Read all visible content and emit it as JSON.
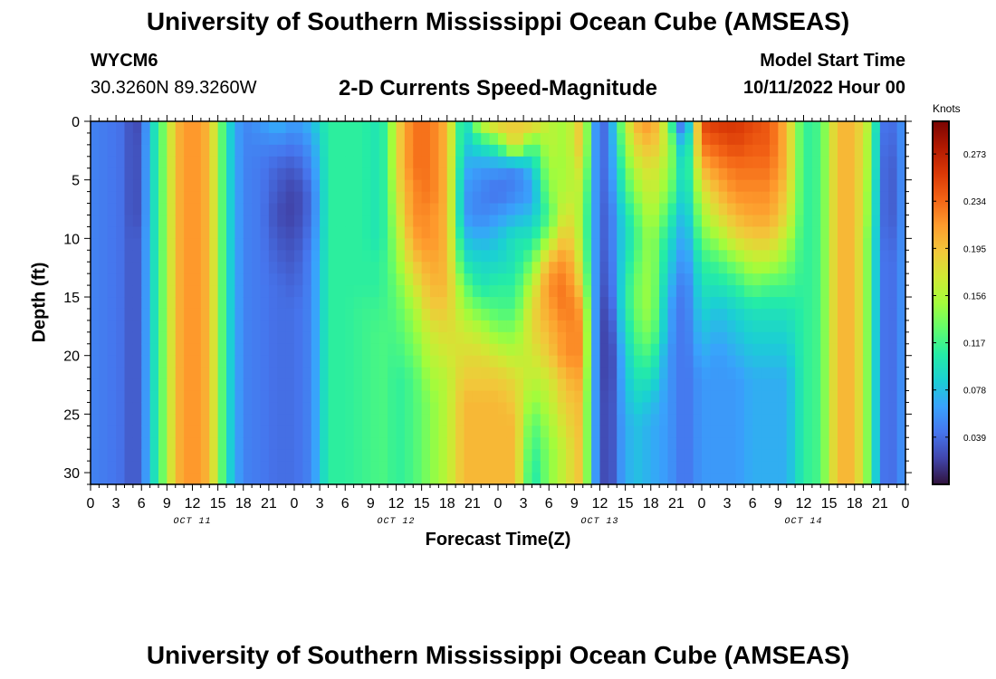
{
  "header": {
    "title": "University of Southern Mississippi Ocean Cube (AMSEAS)",
    "station_id": "WYCM6",
    "coordinates": "30.3260N  89.3260W",
    "parameter": "2-D Currents Speed-Magnitude",
    "model_start_label": "Model Start Time",
    "model_start_value": "10/11/2022 Hour 00"
  },
  "footer": {
    "title": "University of Southern Mississippi Ocean Cube (AMSEAS)"
  },
  "chart_data": {
    "type": "heatmap",
    "title": "2-D Currents Speed-Magnitude",
    "xlabel": "Forecast Time(Z)",
    "ylabel": "Depth (ft)",
    "x_unit": "hours since 10/11/2022 00Z",
    "xlim": [
      0,
      96
    ],
    "ylim": [
      0,
      31
    ],
    "y_inverted": true,
    "x_tick_values": [
      0,
      3,
      6,
      9,
      12,
      15,
      18,
      21,
      24,
      27,
      30,
      33,
      36,
      39,
      42,
      45,
      48,
      51,
      54,
      57,
      60,
      63,
      66,
      69,
      72,
      75,
      78,
      81,
      84,
      87,
      90,
      93,
      96
    ],
    "x_tick_labels": [
      "0",
      "3",
      "6",
      "9",
      "12",
      "15",
      "18",
      "21",
      "0",
      "3",
      "6",
      "9",
      "12",
      "15",
      "18",
      "21",
      "0",
      "3",
      "6",
      "9",
      "12",
      "15",
      "18",
      "21",
      "0",
      "3",
      "6",
      "9",
      "12",
      "15",
      "18",
      "21",
      "0"
    ],
    "y_tick_values": [
      0,
      5,
      10,
      15,
      20,
      25,
      30
    ],
    "y_tick_labels": [
      "0",
      "5",
      "10",
      "15",
      "20",
      "25",
      "30"
    ],
    "date_labels": [
      {
        "hour": 12,
        "label": "OCT 11"
      },
      {
        "hour": 36,
        "label": "OCT 12"
      },
      {
        "hour": 60,
        "label": "OCT 13"
      },
      {
        "hour": 84,
        "label": "OCT 14"
      }
    ],
    "colorbar": {
      "unit": "Knots",
      "min": 0.0,
      "max": 0.3,
      "tick_values": [
        0.039,
        0.078,
        0.117,
        0.156,
        0.195,
        0.234,
        0.273
      ],
      "tick_labels": [
        "0.039",
        "0.078",
        "0.117",
        "0.156",
        "0.195",
        "0.234",
        "0.273"
      ],
      "stops": [
        "#30123b",
        "#4145ab",
        "#4675ed",
        "#39a2fc",
        "#1bcfd4",
        "#24eca6",
        "#61fc6c",
        "#a4fc3b",
        "#d1e834",
        "#f3c63a",
        "#fe9b2d",
        "#f36315",
        "#d93806",
        "#b11901",
        "#7a0403"
      ]
    },
    "time_hours": [
      0,
      2,
      4,
      5,
      6,
      7,
      9,
      10,
      12,
      14,
      15,
      16,
      17,
      18,
      20,
      22,
      24,
      26,
      28,
      30,
      32,
      34,
      35,
      36,
      38,
      40,
      42,
      44,
      46,
      48,
      50,
      52,
      54,
      56,
      58,
      59,
      60,
      61,
      62,
      64,
      66,
      68,
      69,
      70,
      72,
      74,
      76,
      78,
      80,
      82,
      84,
      86,
      88,
      90,
      92,
      93,
      94,
      96
    ],
    "depths_ft": [
      0,
      2,
      4,
      6,
      8,
      10,
      12,
      14,
      16,
      18,
      20,
      22,
      24,
      26,
      28,
      30,
      31
    ],
    "speed_profiles": [
      [
        0.05,
        0.05,
        0.05,
        0.05,
        0.05,
        0.05,
        0.05,
        0.05,
        0.05,
        0.05,
        0.05,
        0.05,
        0.05,
        0.05,
        0.05,
        0.05,
        0.05
      ],
      [
        0.045,
        0.045,
        0.045,
        0.045,
        0.045,
        0.045,
        0.045,
        0.045,
        0.045,
        0.045,
        0.045,
        0.045,
        0.045,
        0.045,
        0.045,
        0.045,
        0.045
      ],
      [
        0.04,
        0.04,
        0.04,
        0.04,
        0.04,
        0.04,
        0.04,
        0.04,
        0.04,
        0.04,
        0.04,
        0.04,
        0.04,
        0.04,
        0.04,
        0.04,
        0.04
      ],
      [
        0.02,
        0.02,
        0.02,
        0.02,
        0.02,
        0.025,
        0.025,
        0.025,
        0.025,
        0.025,
        0.025,
        0.025,
        0.025,
        0.025,
        0.025,
        0.025,
        0.025
      ],
      [
        0.03,
        0.035,
        0.035,
        0.035,
        0.035,
        0.04,
        0.04,
        0.04,
        0.04,
        0.04,
        0.04,
        0.04,
        0.04,
        0.04,
        0.04,
        0.04,
        0.04
      ],
      [
        0.08,
        0.08,
        0.08,
        0.08,
        0.08,
        0.08,
        0.08,
        0.08,
        0.08,
        0.08,
        0.08,
        0.08,
        0.08,
        0.08,
        0.08,
        0.08,
        0.08
      ],
      [
        0.15,
        0.15,
        0.15,
        0.15,
        0.15,
        0.15,
        0.15,
        0.15,
        0.15,
        0.15,
        0.15,
        0.15,
        0.15,
        0.15,
        0.15,
        0.15,
        0.15
      ],
      [
        0.2,
        0.2,
        0.2,
        0.2,
        0.2,
        0.2,
        0.2,
        0.2,
        0.2,
        0.2,
        0.2,
        0.2,
        0.2,
        0.2,
        0.2,
        0.2,
        0.2
      ],
      [
        0.22,
        0.22,
        0.22,
        0.22,
        0.22,
        0.22,
        0.22,
        0.22,
        0.22,
        0.22,
        0.22,
        0.22,
        0.22,
        0.22,
        0.22,
        0.22,
        0.22
      ],
      [
        0.2,
        0.2,
        0.2,
        0.2,
        0.2,
        0.2,
        0.2,
        0.2,
        0.2,
        0.2,
        0.2,
        0.2,
        0.2,
        0.2,
        0.2,
        0.2,
        0.2
      ],
      [
        0.15,
        0.15,
        0.15,
        0.15,
        0.15,
        0.15,
        0.15,
        0.15,
        0.15,
        0.15,
        0.15,
        0.15,
        0.15,
        0.15,
        0.15,
        0.15,
        0.15
      ],
      [
        0.1,
        0.1,
        0.1,
        0.1,
        0.1,
        0.1,
        0.1,
        0.1,
        0.1,
        0.1,
        0.1,
        0.1,
        0.1,
        0.1,
        0.1,
        0.1,
        0.1
      ],
      [
        0.07,
        0.07,
        0.07,
        0.07,
        0.07,
        0.07,
        0.07,
        0.07,
        0.07,
        0.07,
        0.07,
        0.07,
        0.07,
        0.07,
        0.07,
        0.07,
        0.07
      ],
      [
        0.05,
        0.05,
        0.05,
        0.05,
        0.05,
        0.05,
        0.05,
        0.05,
        0.05,
        0.05,
        0.05,
        0.05,
        0.05,
        0.05,
        0.05,
        0.05,
        0.05
      ],
      [
        0.06,
        0.05,
        0.045,
        0.045,
        0.045,
        0.045,
        0.045,
        0.045,
        0.045,
        0.045,
        0.045,
        0.045,
        0.045,
        0.045,
        0.045,
        0.045,
        0.045
      ],
      [
        0.075,
        0.05,
        0.035,
        0.03,
        0.025,
        0.03,
        0.035,
        0.04,
        0.04,
        0.04,
        0.04,
        0.04,
        0.04,
        0.04,
        0.04,
        0.04,
        0.04
      ],
      [
        0.06,
        0.045,
        0.03,
        0.02,
        0.02,
        0.025,
        0.03,
        0.035,
        0.04,
        0.04,
        0.04,
        0.04,
        0.04,
        0.04,
        0.04,
        0.04,
        0.04
      ],
      [
        0.075,
        0.06,
        0.05,
        0.04,
        0.04,
        0.045,
        0.05,
        0.05,
        0.05,
        0.05,
        0.05,
        0.05,
        0.05,
        0.05,
        0.05,
        0.05,
        0.05
      ],
      [
        0.11,
        0.11,
        0.11,
        0.11,
        0.11,
        0.11,
        0.11,
        0.11,
        0.11,
        0.11,
        0.11,
        0.11,
        0.11,
        0.11,
        0.11,
        0.11,
        0.11
      ],
      [
        0.11,
        0.11,
        0.11,
        0.11,
        0.11,
        0.11,
        0.11,
        0.11,
        0.11,
        0.11,
        0.11,
        0.11,
        0.11,
        0.11,
        0.11,
        0.11,
        0.11
      ],
      [
        0.11,
        0.11,
        0.11,
        0.11,
        0.11,
        0.11,
        0.11,
        0.11,
        0.115,
        0.115,
        0.115,
        0.115,
        0.115,
        0.115,
        0.115,
        0.115,
        0.115
      ],
      [
        0.1,
        0.1,
        0.1,
        0.1,
        0.1,
        0.1,
        0.11,
        0.11,
        0.115,
        0.12,
        0.12,
        0.12,
        0.12,
        0.12,
        0.12,
        0.12,
        0.12
      ],
      [
        0.12,
        0.12,
        0.12,
        0.12,
        0.12,
        0.12,
        0.12,
        0.12,
        0.12,
        0.12,
        0.12,
        0.12,
        0.12,
        0.12,
        0.12,
        0.12,
        0.12
      ],
      [
        0.18,
        0.18,
        0.18,
        0.17,
        0.16,
        0.15,
        0.14,
        0.13,
        0.125,
        0.12,
        0.115,
        0.11,
        0.11,
        0.11,
        0.11,
        0.11,
        0.11
      ],
      [
        0.23,
        0.23,
        0.23,
        0.22,
        0.22,
        0.21,
        0.19,
        0.17,
        0.15,
        0.14,
        0.13,
        0.12,
        0.12,
        0.12,
        0.12,
        0.12,
        0.12
      ],
      [
        0.23,
        0.23,
        0.23,
        0.23,
        0.22,
        0.22,
        0.21,
        0.2,
        0.19,
        0.17,
        0.16,
        0.15,
        0.14,
        0.14,
        0.14,
        0.14,
        0.14
      ],
      [
        0.2,
        0.2,
        0.2,
        0.2,
        0.2,
        0.2,
        0.2,
        0.2,
        0.19,
        0.18,
        0.17,
        0.16,
        0.16,
        0.16,
        0.16,
        0.16,
        0.16
      ],
      [
        0.08,
        0.08,
        0.07,
        0.06,
        0.06,
        0.08,
        0.1,
        0.13,
        0.15,
        0.17,
        0.18,
        0.19,
        0.2,
        0.2,
        0.2,
        0.2,
        0.2
      ],
      [
        0.17,
        0.1,
        0.06,
        0.05,
        0.05,
        0.07,
        0.09,
        0.1,
        0.13,
        0.16,
        0.18,
        0.19,
        0.2,
        0.2,
        0.2,
        0.2,
        0.2
      ],
      [
        0.2,
        0.12,
        0.06,
        0.04,
        0.06,
        0.08,
        0.09,
        0.11,
        0.12,
        0.14,
        0.17,
        0.19,
        0.2,
        0.2,
        0.2,
        0.2,
        0.2
      ],
      [
        0.19,
        0.19,
        0.05,
        0.05,
        0.07,
        0.1,
        0.1,
        0.11,
        0.12,
        0.14,
        0.16,
        0.18,
        0.19,
        0.2,
        0.2,
        0.2,
        0.2
      ],
      [
        0.2,
        0.12,
        0.08,
        0.06,
        0.08,
        0.1,
        0.13,
        0.16,
        0.18,
        0.18,
        0.17,
        0.16,
        0.14,
        0.12,
        0.11,
        0.1,
        0.1
      ],
      [
        0.16,
        0.16,
        0.15,
        0.14,
        0.12,
        0.15,
        0.2,
        0.22,
        0.21,
        0.2,
        0.19,
        0.17,
        0.16,
        0.15,
        0.14,
        0.14,
        0.14
      ],
      [
        0.15,
        0.15,
        0.15,
        0.16,
        0.18,
        0.2,
        0.22,
        0.23,
        0.23,
        0.22,
        0.22,
        0.2,
        0.19,
        0.18,
        0.17,
        0.17,
        0.17
      ],
      [
        0.2,
        0.2,
        0.18,
        0.16,
        0.15,
        0.15,
        0.16,
        0.18,
        0.21,
        0.22,
        0.22,
        0.21,
        0.2,
        0.2,
        0.2,
        0.2,
        0.2
      ],
      [
        0.08,
        0.08,
        0.08,
        0.08,
        0.08,
        0.08,
        0.08,
        0.08,
        0.08,
        0.08,
        0.08,
        0.08,
        0.08,
        0.08,
        0.08,
        0.08,
        0.08
      ],
      [
        0.04,
        0.04,
        0.04,
        0.04,
        0.04,
        0.04,
        0.04,
        0.04,
        0.04,
        0.04,
        0.04,
        0.04,
        0.04,
        0.04,
        0.04,
        0.04,
        0.04
      ],
      [
        0.04,
        0.04,
        0.04,
        0.035,
        0.03,
        0.03,
        0.025,
        0.02,
        0.01,
        0.005,
        0.005,
        0.005,
        0.01,
        0.01,
        0.01,
        0.01,
        0.01
      ],
      [
        0.11,
        0.1,
        0.09,
        0.08,
        0.07,
        0.07,
        0.07,
        0.07,
        0.07,
        0.06,
        0.05,
        0.05,
        0.05,
        0.05,
        0.05,
        0.05,
        0.05
      ],
      [
        0.2,
        0.18,
        0.16,
        0.14,
        0.12,
        0.11,
        0.12,
        0.13,
        0.13,
        0.12,
        0.11,
        0.1,
        0.09,
        0.08,
        0.08,
        0.08,
        0.08
      ],
      [
        0.22,
        0.2,
        0.18,
        0.17,
        0.16,
        0.15,
        0.15,
        0.15,
        0.15,
        0.14,
        0.12,
        0.1,
        0.08,
        0.07,
        0.07,
        0.07,
        0.07
      ],
      [
        0.15,
        0.16,
        0.15,
        0.14,
        0.12,
        0.1,
        0.09,
        0.08,
        0.07,
        0.07,
        0.06,
        0.06,
        0.06,
        0.06,
        0.06,
        0.06,
        0.06
      ],
      [
        0.06,
        0.11,
        0.12,
        0.11,
        0.09,
        0.08,
        0.07,
        0.06,
        0.05,
        0.05,
        0.05,
        0.05,
        0.05,
        0.05,
        0.05,
        0.05,
        0.05
      ],
      [
        0.02,
        0.06,
        0.08,
        0.08,
        0.07,
        0.06,
        0.05,
        0.04,
        0.04,
        0.04,
        0.04,
        0.04,
        0.04,
        0.04,
        0.04,
        0.04,
        0.04
      ],
      [
        0.25,
        0.23,
        0.2,
        0.17,
        0.15,
        0.13,
        0.11,
        0.1,
        0.09,
        0.08,
        0.07,
        0.06,
        0.06,
        0.06,
        0.06,
        0.06,
        0.06
      ],
      [
        0.26,
        0.24,
        0.22,
        0.2,
        0.18,
        0.15,
        0.12,
        0.1,
        0.08,
        0.07,
        0.06,
        0.06,
        0.06,
        0.06,
        0.06,
        0.06,
        0.06
      ],
      [
        0.26,
        0.25,
        0.23,
        0.22,
        0.2,
        0.18,
        0.14,
        0.11,
        0.09,
        0.08,
        0.07,
        0.06,
        0.06,
        0.06,
        0.06,
        0.06,
        0.06
      ],
      [
        0.25,
        0.24,
        0.23,
        0.22,
        0.21,
        0.19,
        0.16,
        0.13,
        0.1,
        0.09,
        0.08,
        0.07,
        0.07,
        0.07,
        0.07,
        0.07,
        0.07
      ],
      [
        0.24,
        0.24,
        0.23,
        0.22,
        0.21,
        0.19,
        0.16,
        0.12,
        0.1,
        0.09,
        0.08,
        0.07,
        0.07,
        0.07,
        0.07,
        0.07,
        0.07
      ],
      [
        0.2,
        0.2,
        0.2,
        0.19,
        0.18,
        0.16,
        0.14,
        0.12,
        0.1,
        0.09,
        0.08,
        0.07,
        0.07,
        0.07,
        0.07,
        0.07,
        0.07
      ],
      [
        0.11,
        0.11,
        0.11,
        0.11,
        0.11,
        0.11,
        0.11,
        0.11,
        0.11,
        0.11,
        0.11,
        0.11,
        0.11,
        0.11,
        0.11,
        0.11,
        0.11
      ],
      [
        0.12,
        0.12,
        0.12,
        0.12,
        0.12,
        0.12,
        0.12,
        0.12,
        0.12,
        0.12,
        0.12,
        0.12,
        0.12,
        0.12,
        0.12,
        0.12,
        0.12
      ],
      [
        0.2,
        0.2,
        0.2,
        0.2,
        0.2,
        0.2,
        0.2,
        0.2,
        0.2,
        0.2,
        0.2,
        0.2,
        0.2,
        0.2,
        0.2,
        0.2,
        0.2
      ],
      [
        0.2,
        0.2,
        0.2,
        0.2,
        0.2,
        0.2,
        0.2,
        0.2,
        0.2,
        0.2,
        0.2,
        0.2,
        0.2,
        0.2,
        0.2,
        0.2,
        0.2
      ],
      [
        0.15,
        0.14,
        0.14,
        0.13,
        0.13,
        0.12,
        0.12,
        0.12,
        0.12,
        0.12,
        0.12,
        0.12,
        0.12,
        0.12,
        0.12,
        0.12,
        0.12
      ],
      [
        0.05,
        0.05,
        0.05,
        0.05,
        0.05,
        0.05,
        0.05,
        0.05,
        0.05,
        0.05,
        0.05,
        0.05,
        0.05,
        0.05,
        0.05,
        0.05,
        0.05
      ],
      [
        0.035,
        0.03,
        0.025,
        0.025,
        0.025,
        0.03,
        0.035,
        0.035,
        0.035,
        0.035,
        0.035,
        0.035,
        0.035,
        0.035,
        0.035,
        0.035,
        0.035
      ],
      [
        0.06,
        0.06,
        0.06,
        0.06,
        0.06,
        0.06,
        0.06,
        0.06,
        0.06,
        0.06,
        0.06,
        0.06,
        0.06,
        0.06,
        0.06,
        0.06,
        0.06
      ]
    ]
  }
}
